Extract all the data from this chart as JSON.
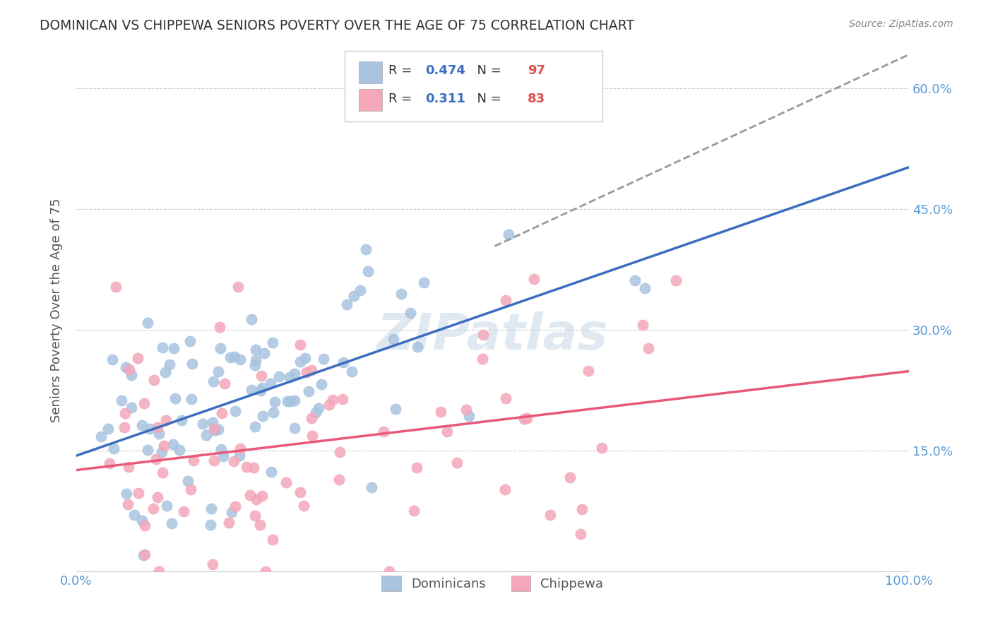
{
  "title": "DOMINICAN VS CHIPPEWA SENIORS POVERTY OVER THE AGE OF 75 CORRELATION CHART",
  "source": "Source: ZipAtlas.com",
  "ylabel": "Seniors Poverty Over the Age of 75",
  "xlabel": "",
  "r_dominican": 0.474,
  "n_dominican": 97,
  "r_chippewa": 0.311,
  "n_chippewa": 83,
  "color_dominican": "#a8c4e0",
  "color_chippewa": "#f4a7b9",
  "line_color_dominican": "#3B6EBF",
  "line_color_chippewa": "#E8587A",
  "line_color_dashed": "#999999",
  "xlim": [
    0,
    1.0
  ],
  "ylim": [
    0,
    0.65
  ],
  "ytick_labels": [
    "15.0%",
    "30.0%",
    "45.0%",
    "60.0%"
  ],
  "ytick_values": [
    0.15,
    0.3,
    0.45,
    0.6
  ],
  "xtick_labels": [
    "0.0%",
    "100.0%"
  ],
  "xtick_values": [
    0.0,
    1.0
  ],
  "watermark": "ZIPatlas",
  "title_color": "#333333",
  "tick_label_color": "#5B9BD5",
  "background_color": "#ffffff",
  "grid_color": "#cccccc"
}
